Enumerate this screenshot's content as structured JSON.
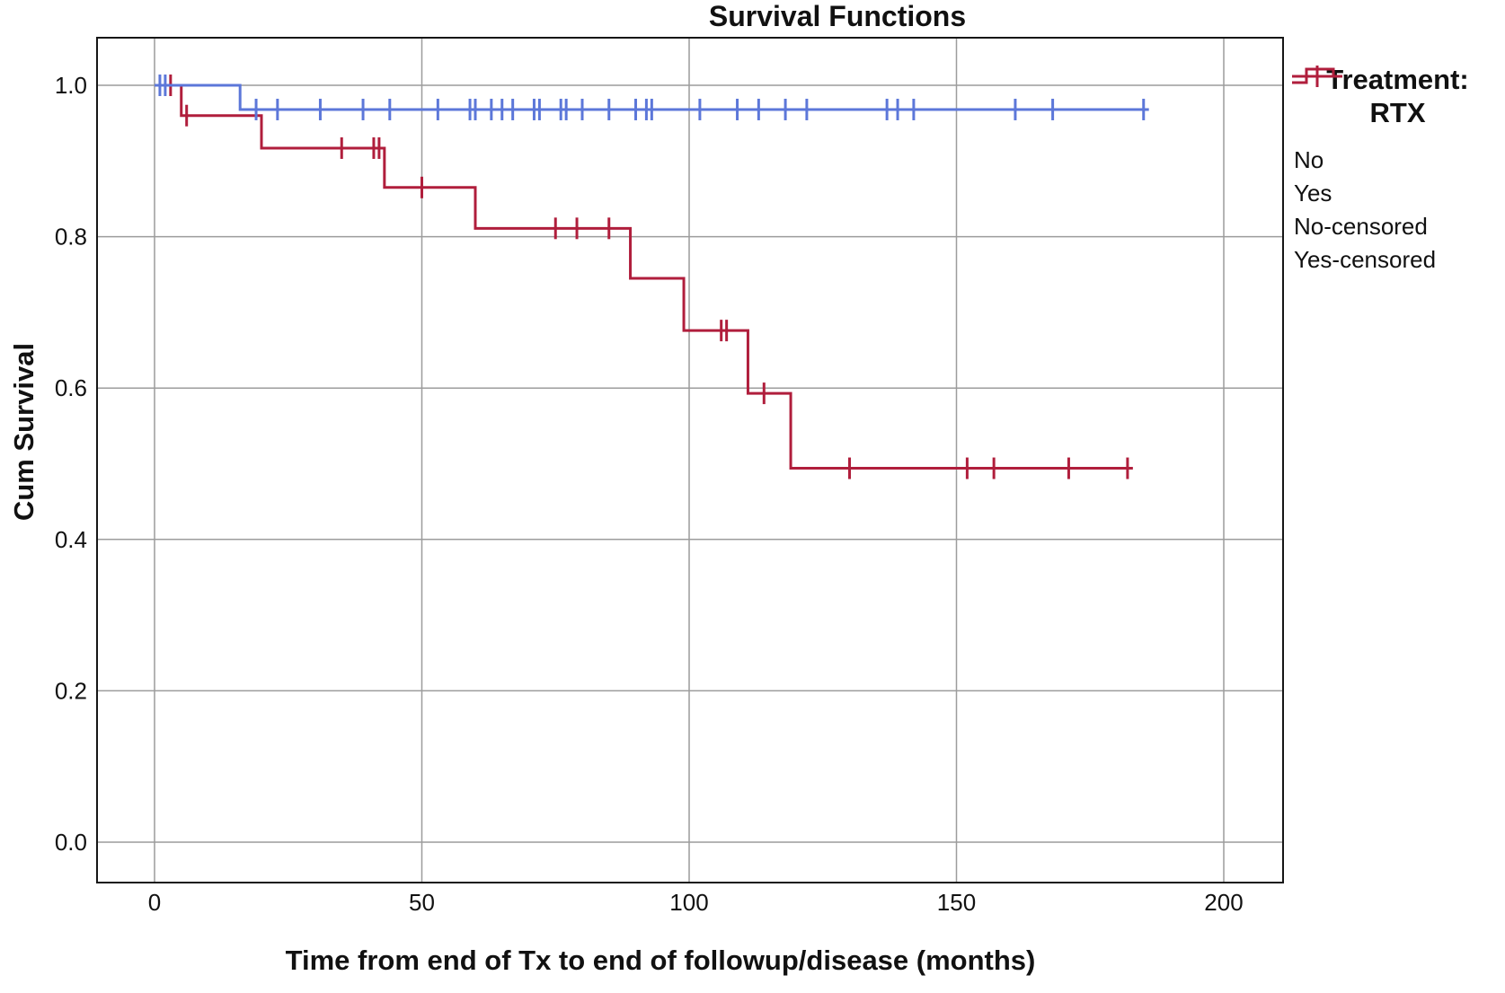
{
  "title": "Survival Functions",
  "x_axis": {
    "label": "Time from end of Tx to end of followup/disease (months)",
    "tick_labels": [
      "0",
      "50",
      "100",
      "150",
      "200"
    ]
  },
  "y_axis": {
    "label": "Cum Survival",
    "tick_labels": [
      "0.0",
      "0.2",
      "0.4",
      "0.6",
      "0.8",
      "1.0"
    ]
  },
  "legend": {
    "title_line1": "Treatment:",
    "title_line2": "RTX",
    "items": [
      {
        "label": "No",
        "glyph": "step",
        "color": "#5C77D9"
      },
      {
        "label": "Yes",
        "glyph": "step",
        "color": "#B01E3C"
      },
      {
        "label": "No-censored",
        "glyph": "plus",
        "color": "#5C77D9"
      },
      {
        "label": "Yes-censored",
        "glyph": "plus",
        "color": "#B01E3C"
      }
    ]
  },
  "colors": {
    "no_line": "#5C77D9",
    "yes_line": "#B01E3C",
    "grid": "#9C9C9C",
    "frame": "#161616"
  },
  "chart_data": {
    "type": "line",
    "subtype": "kaplan-meier-step",
    "title": "Survival Functions",
    "xlabel": "Time from end of Tx to end of followup/disease (months)",
    "ylabel": "Cum Survival",
    "xlim": [
      0,
      200
    ],
    "ylim": [
      0.0,
      1.0
    ],
    "grid": true,
    "legend_position": "right",
    "legend_title": "Treatment: RTX",
    "xticks": [
      0,
      50,
      100,
      150,
      200
    ],
    "xtick_labels": [
      "0",
      "50",
      "100",
      "150",
      "200"
    ],
    "yticks": [
      0.0,
      0.2,
      0.4,
      0.6,
      0.8,
      1.0
    ],
    "ytick_labels": [
      "0.0",
      "0.2",
      "0.4",
      "0.6",
      "0.8",
      "1.0"
    ],
    "grid_color": "#9C9C9C",
    "frame_color": "#161616",
    "series": [
      {
        "name": "No",
        "color": "#5C77D9",
        "steps": [
          [
            0,
            1.0
          ],
          [
            16,
            1.0
          ],
          [
            16,
            0.968
          ],
          [
            186,
            0.968
          ]
        ],
        "censored": [
          [
            1,
            1.0
          ],
          [
            2,
            1.0
          ],
          [
            19,
            0.968
          ],
          [
            23,
            0.968
          ],
          [
            31,
            0.968
          ],
          [
            39,
            0.968
          ],
          [
            44,
            0.968
          ],
          [
            53,
            0.968
          ],
          [
            59,
            0.968
          ],
          [
            60,
            0.968
          ],
          [
            63,
            0.968
          ],
          [
            65,
            0.968
          ],
          [
            67,
            0.968
          ],
          [
            71,
            0.968
          ],
          [
            72,
            0.968
          ],
          [
            76,
            0.968
          ],
          [
            77,
            0.968
          ],
          [
            80,
            0.968
          ],
          [
            85,
            0.968
          ],
          [
            90,
            0.968
          ],
          [
            92,
            0.968
          ],
          [
            93,
            0.968
          ],
          [
            102,
            0.968
          ],
          [
            109,
            0.968
          ],
          [
            113,
            0.968
          ],
          [
            118,
            0.968
          ],
          [
            122,
            0.968
          ],
          [
            137,
            0.968
          ],
          [
            139,
            0.968
          ],
          [
            142,
            0.968
          ],
          [
            161,
            0.968
          ],
          [
            168,
            0.968
          ],
          [
            185,
            0.968
          ]
        ]
      },
      {
        "name": "Yes",
        "color": "#B01E3C",
        "steps": [
          [
            0,
            1.0
          ],
          [
            5,
            1.0
          ],
          [
            5,
            0.96
          ],
          [
            20,
            0.96
          ],
          [
            20,
            0.917
          ],
          [
            43,
            0.917
          ],
          [
            43,
            0.865
          ],
          [
            60,
            0.865
          ],
          [
            60,
            0.811
          ],
          [
            89,
            0.811
          ],
          [
            89,
            0.745
          ],
          [
            99,
            0.745
          ],
          [
            99,
            0.676
          ],
          [
            111,
            0.676
          ],
          [
            111,
            0.593
          ],
          [
            119,
            0.593
          ],
          [
            119,
            0.494
          ],
          [
            183,
            0.494
          ]
        ],
        "censored": [
          [
            3,
            1.0
          ],
          [
            6,
            0.96
          ],
          [
            35,
            0.917
          ],
          [
            41,
            0.917
          ],
          [
            42,
            0.917
          ],
          [
            50,
            0.865
          ],
          [
            75,
            0.811
          ],
          [
            79,
            0.811
          ],
          [
            85,
            0.811
          ],
          [
            106,
            0.676
          ],
          [
            107,
            0.676
          ],
          [
            114,
            0.593
          ],
          [
            130,
            0.494
          ],
          [
            152,
            0.494
          ],
          [
            157,
            0.494
          ],
          [
            171,
            0.494
          ],
          [
            182,
            0.494
          ]
        ]
      }
    ]
  }
}
